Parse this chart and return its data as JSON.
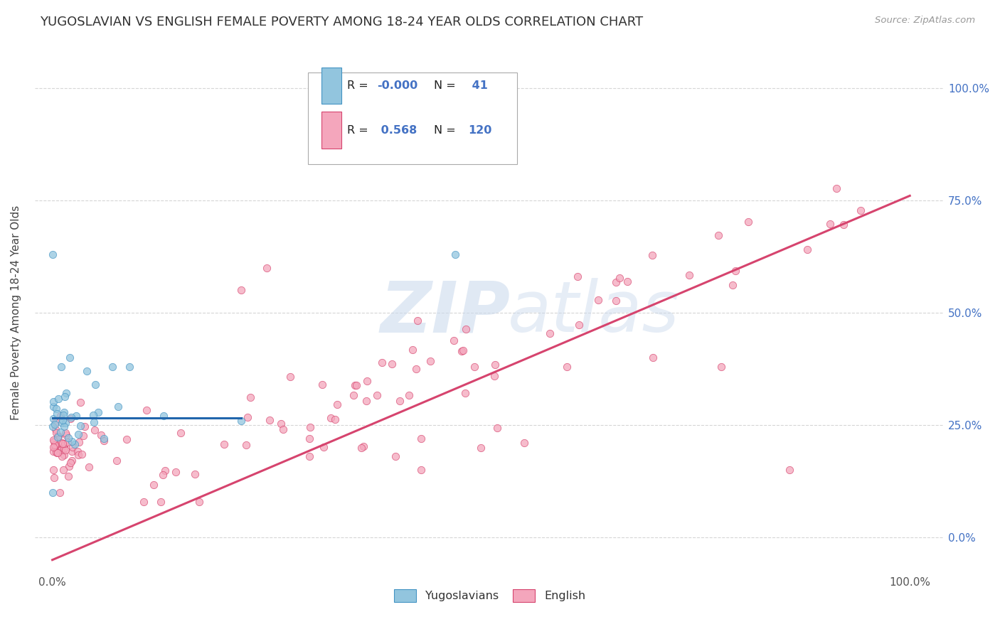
{
  "title": "YUGOSLAVIAN VS ENGLISH FEMALE POVERTY AMONG 18-24 YEAR OLDS CORRELATION CHART",
  "source": "Source: ZipAtlas.com",
  "ylabel": "Female Poverty Among 18-24 Year Olds",
  "background_color": "#ffffff",
  "watermark_zip": "ZIP",
  "watermark_atlas": "atlas",
  "blue_color": "#92c5de",
  "blue_edge_color": "#4393c3",
  "pink_color": "#f4a6bc",
  "pink_edge_color": "#d6446e",
  "blue_line_color": "#2166ac",
  "pink_line_color": "#d6446e",
  "right_tick_color": "#4472c4",
  "title_color": "#333333",
  "source_color": "#999999",
  "grid_color": "#cccccc",
  "yug_line_x_end": 0.22,
  "pink_line_y0": -0.05,
  "pink_line_y1": 0.76,
  "yug_line_y": 0.265,
  "xlim": [
    -0.02,
    1.04
  ],
  "ylim": [
    -0.08,
    1.08
  ],
  "yticks": [
    0.0,
    0.25,
    0.5,
    0.75,
    1.0
  ],
  "ytick_labels": [
    "0.0%",
    "25.0%",
    "50.0%",
    "75.0%",
    "100.0%"
  ],
  "xticks": [
    0.0,
    1.0
  ],
  "xtick_labels": [
    "0.0%",
    "100.0%"
  ]
}
